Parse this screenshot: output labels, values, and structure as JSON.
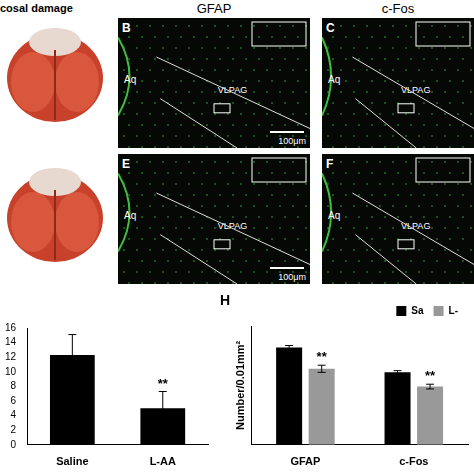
{
  "photo_caption": "cosal damage",
  "micrographs": [
    {
      "panel": "B",
      "header": "GFAP",
      "labels": [
        "Aq",
        "VLPAG"
      ],
      "scale_bar": "100μm"
    },
    {
      "panel": "C",
      "header": "c-Fos",
      "labels": [
        "Aq",
        "VLPAG"
      ]
    },
    {
      "panel": "E",
      "labels": [
        "Aq",
        "VLPAG"
      ],
      "scale_bar": "100μm"
    },
    {
      "panel": "F",
      "labels": [
        "Aq",
        "VLPAG"
      ]
    }
  ],
  "chart_data": [
    {
      "type": "bar",
      "categories": [
        "Saline",
        "L-AA"
      ],
      "values": [
        12.3,
        5
      ],
      "errors": [
        2.8,
        2.3
      ],
      "color": "#000000",
      "ylim": [
        0,
        16
      ],
      "yticks": [
        0,
        2,
        4,
        6,
        8,
        10,
        12,
        14,
        16
      ],
      "grid": false,
      "annotations": [
        {
          "category": "L-AA",
          "text": "**"
        }
      ]
    },
    {
      "type": "bar",
      "panel_label": "H",
      "y_label": "Number/0.01mm²",
      "categories": [
        "GFAP",
        "c-Fos"
      ],
      "series": [
        {
          "name": "Sa",
          "color": "#000000",
          "values": [
            4.1,
            3.05
          ],
          "errors": [
            0.08,
            0.07
          ]
        },
        {
          "name": "L-",
          "color": "#999999",
          "values": [
            3.2,
            2.45
          ],
          "errors": [
            0.15,
            0.1
          ]
        }
      ],
      "ylim": [
        0,
        5
      ],
      "grid": false,
      "tick_labels": "x",
      "legend": "upper right",
      "annotations": [
        {
          "category": "GFAP",
          "series": "L-",
          "text": "**"
        },
        {
          "category": "c-Fos",
          "series": "L-",
          "text": "**"
        }
      ]
    }
  ]
}
